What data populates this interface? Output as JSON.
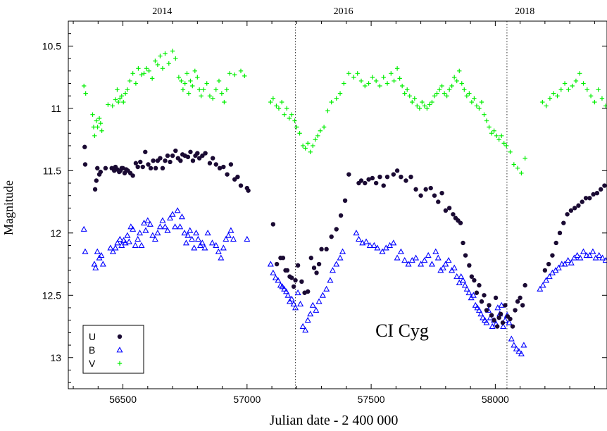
{
  "chart_data": {
    "type": "scatter",
    "title": "CI Cyg",
    "xlabel": "Julian date - 2 400 000",
    "ylabel": "Magnitude",
    "xlim": [
      56280,
      58450
    ],
    "ylim": [
      13.25,
      10.3
    ],
    "y_inverted": true,
    "x_ticks": [
      56500,
      57000,
      57500,
      58000
    ],
    "y_ticks": [
      10.5,
      11,
      11.5,
      12,
      12.5,
      13
    ],
    "top_axis": {
      "labels": [
        "2014",
        "2016",
        "2018"
      ],
      "positions": [
        56658,
        57388,
        58119
      ]
    },
    "vertical_lines": [
      57195,
      58047
    ],
    "legend_placement": "bottom-left",
    "grid": false,
    "colors": {
      "U": "#1a0a33",
      "B": "#0000ff",
      "V": "#00ee00"
    },
    "series": [
      {
        "name": "U",
        "marker": "circle",
        "x": [
          56346,
          56348,
          56388,
          56393,
          56397,
          56405,
          56410,
          56430,
          56455,
          56465,
          56470,
          56477,
          56485,
          56490,
          56495,
          56500,
          56507,
          56513,
          56520,
          56530,
          56540,
          56552,
          56560,
          56570,
          56580,
          56590,
          56602,
          56612,
          56622,
          56632,
          56640,
          56650,
          56660,
          56670,
          56680,
          56690,
          56700,
          56712,
          56722,
          56732,
          56740,
          56750,
          56762,
          56772,
          56782,
          56792,
          56800,
          56808,
          56820,
          56832,
          56850,
          56862,
          56875,
          56890,
          56905,
          56920,
          56935,
          56950,
          56962,
          56975,
          57000,
          57005,
          57105,
          57120,
          57135,
          57145,
          57155,
          57162,
          57172,
          57180,
          57188,
          57195,
          57205,
          57220,
          57232,
          57245,
          57258,
          57270,
          57280,
          57290,
          57300,
          57320,
          57340,
          57360,
          57378,
          57395,
          57410,
          57450,
          57460,
          57475,
          57490,
          57505,
          57520,
          57535,
          57550,
          57565,
          57590,
          57605,
          57620,
          57640,
          57660,
          57680,
          57700,
          57720,
          57740,
          57755,
          57770,
          57785,
          57800,
          57815,
          57830,
          57840,
          57850,
          57860,
          57870,
          57880,
          57895,
          57905,
          57915,
          57925,
          57935,
          57945,
          57955,
          57965,
          57975,
          57985,
          57995,
          58002,
          58008,
          58015,
          58022,
          58030,
          58040,
          58050,
          58060,
          58070,
          58080,
          58090,
          58100,
          58110,
          58120,
          58200,
          58215,
          58230,
          58245,
          58260,
          58275,
          58290,
          58305,
          58320,
          58335,
          58350,
          58365,
          58380,
          58395,
          58410,
          58425,
          58440
        ],
        "y": [
          11.31,
          11.45,
          11.65,
          11.58,
          11.48,
          11.53,
          11.51,
          11.48,
          11.48,
          11.5,
          11.47,
          11.49,
          11.51,
          11.5,
          11.48,
          11.48,
          11.52,
          11.49,
          11.5,
          11.52,
          11.54,
          11.44,
          11.47,
          11.43,
          11.47,
          11.35,
          11.45,
          11.48,
          11.42,
          11.48,
          11.42,
          11.4,
          11.48,
          11.42,
          11.38,
          11.43,
          11.38,
          11.34,
          11.4,
          11.42,
          11.37,
          11.38,
          11.39,
          11.35,
          11.42,
          11.38,
          11.36,
          11.4,
          11.38,
          11.36,
          11.44,
          11.4,
          11.45,
          11.48,
          11.47,
          11.53,
          11.45,
          11.57,
          11.55,
          11.62,
          11.64,
          11.66,
          11.93,
          12.25,
          12.2,
          12.2,
          12.3,
          12.3,
          12.35,
          12.36,
          12.43,
          12.38,
          12.26,
          12.39,
          12.48,
          12.47,
          12.2,
          12.28,
          12.32,
          12.25,
          12.13,
          12.13,
          12.03,
          11.97,
          11.86,
          11.74,
          11.53,
          11.6,
          11.58,
          11.6,
          11.57,
          11.56,
          11.6,
          11.55,
          11.62,
          11.55,
          11.53,
          11.5,
          11.55,
          11.58,
          11.55,
          11.65,
          11.7,
          11.65,
          11.64,
          11.7,
          11.75,
          11.68,
          11.82,
          11.8,
          11.85,
          11.88,
          11.9,
          11.92,
          12.08,
          12.18,
          12.26,
          12.35,
          12.38,
          12.48,
          12.42,
          12.55,
          12.5,
          12.62,
          12.58,
          12.66,
          12.7,
          12.52,
          12.75,
          12.68,
          12.65,
          12.72,
          12.58,
          12.67,
          12.69,
          12.75,
          12.62,
          12.55,
          12.52,
          12.58,
          12.42,
          12.3,
          12.25,
          12.18,
          12.08,
          12.0,
          11.92,
          11.85,
          11.82,
          11.8,
          11.78,
          11.75,
          11.72,
          11.72,
          11.69,
          11.68,
          11.65,
          11.62
        ]
      },
      {
        "name": "B",
        "marker": "triangle",
        "x": [
          56343,
          56348,
          56385,
          56390,
          56397,
          56405,
          56413,
          56420,
          56450,
          56460,
          56470,
          56478,
          56488,
          56495,
          56503,
          56510,
          56518,
          56525,
          56532,
          56540,
          56550,
          56560,
          56568,
          56575,
          56585,
          56592,
          56600,
          56610,
          56620,
          56630,
          56640,
          56650,
          56660,
          56670,
          56680,
          56690,
          56700,
          56710,
          56720,
          56730,
          56738,
          56748,
          56755,
          56762,
          56770,
          56778,
          56787,
          56795,
          56803,
          56812,
          56820,
          56830,
          56842,
          56860,
          56875,
          56885,
          56895,
          56905,
          56915,
          56925,
          56935,
          56945,
          57000,
          57095,
          57105,
          57115,
          57125,
          57135,
          57142,
          57150,
          57158,
          57165,
          57172,
          57180,
          57188,
          57195,
          57205,
          57215,
          57225,
          57235,
          57245,
          57255,
          57265,
          57278,
          57290,
          57305,
          57320,
          57335,
          57345,
          57360,
          57375,
          57385,
          57440,
          57450,
          57465,
          57480,
          57495,
          57512,
          57525,
          57545,
          57560,
          57575,
          57590,
          57605,
          57620,
          57635,
          57650,
          57665,
          57680,
          57700,
          57715,
          57730,
          57745,
          57760,
          57770,
          57780,
          57790,
          57800,
          57812,
          57825,
          57835,
          57845,
          57855,
          57862,
          57870,
          57878,
          57886,
          57894,
          57903,
          57912,
          57920,
          57928,
          57935,
          57942,
          57950,
          57958,
          57965,
          57972,
          57980,
          57988,
          57995,
          58003,
          58010,
          58018,
          58025,
          58032,
          58040,
          58048,
          58056,
          58065,
          58075,
          58085,
          58095,
          58105,
          58115,
          58180,
          58192,
          58205,
          58218,
          58230,
          58243,
          58255,
          58268,
          58280,
          58293,
          58306,
          58318,
          58330,
          58342,
          58355,
          58368,
          58380,
          58393,
          58405,
          58418,
          58432,
          58445
        ],
        "y": [
          11.97,
          12.15,
          12.25,
          12.28,
          12.15,
          12.2,
          12.18,
          12.25,
          12.12,
          12.15,
          12.12,
          12.08,
          12.05,
          12.1,
          12.06,
          12.08,
          12.02,
          12.07,
          11.95,
          11.97,
          12.1,
          12.05,
          12.0,
          12.1,
          11.92,
          11.98,
          11.9,
          11.93,
          12.02,
          12.05,
          12.0,
          11.95,
          11.9,
          11.95,
          11.98,
          11.88,
          11.85,
          11.95,
          11.82,
          11.95,
          11.87,
          12.0,
          12.08,
          12.02,
          11.98,
          12.05,
          12.12,
          12.0,
          12.05,
          12.1,
          12.08,
          12.12,
          12.0,
          12.08,
          12.1,
          12.15,
          12.2,
          12.12,
          12.05,
          12.02,
          11.98,
          12.05,
          12.05,
          12.25,
          12.32,
          12.36,
          12.38,
          12.42,
          12.43,
          12.45,
          12.47,
          12.5,
          12.55,
          12.53,
          12.57,
          12.6,
          12.48,
          12.57,
          12.75,
          12.78,
          12.7,
          12.65,
          12.58,
          12.62,
          12.55,
          12.5,
          12.45,
          12.38,
          12.3,
          12.25,
          12.2,
          12.15,
          12.0,
          12.05,
          12.08,
          12.07,
          12.1,
          12.1,
          12.12,
          12.15,
          12.12,
          12.1,
          12.08,
          12.2,
          12.15,
          12.22,
          12.25,
          12.22,
          12.2,
          12.25,
          12.22,
          12.18,
          12.25,
          12.15,
          12.2,
          12.3,
          12.28,
          12.25,
          12.22,
          12.3,
          12.28,
          12.35,
          12.4,
          12.35,
          12.38,
          12.42,
          12.45,
          12.48,
          12.52,
          12.5,
          12.58,
          12.6,
          12.62,
          12.65,
          12.68,
          12.7,
          12.72,
          12.62,
          12.68,
          12.75,
          12.7,
          12.73,
          12.6,
          12.65,
          12.58,
          12.75,
          12.7,
          12.66,
          12.72,
          12.85,
          12.9,
          12.93,
          12.95,
          12.97,
          12.9,
          12.45,
          12.42,
          12.38,
          12.35,
          12.32,
          12.3,
          12.28,
          12.25,
          12.25,
          12.22,
          12.24,
          12.2,
          12.18,
          12.2,
          12.15,
          12.18,
          12.18,
          12.15,
          12.2,
          12.18,
          12.2,
          12.22
        ]
      },
      {
        "name": "V",
        "marker": "plus",
        "x": [
          56343,
          56350,
          56378,
          56382,
          56386,
          56393,
          56398,
          56405,
          56410,
          56415,
          56440,
          56458,
          56470,
          56477,
          56482,
          56488,
          56495,
          56502,
          56510,
          56518,
          56528,
          56540,
          56552,
          56562,
          56575,
          56585,
          56595,
          56605,
          56618,
          56630,
          56640,
          56650,
          56660,
          56670,
          56685,
          56700,
          56712,
          56725,
          56735,
          56742,
          56750,
          56758,
          56765,
          56772,
          56780,
          56790,
          56800,
          56808,
          56815,
          56825,
          56838,
          56850,
          56862,
          56875,
          56887,
          56898,
          56908,
          56918,
          56930,
          56950,
          56975,
          56990,
          57095,
          57105,
          57118,
          57128,
          57140,
          57150,
          57160,
          57170,
          57180,
          57192,
          57200,
          57212,
          57225,
          57235,
          57245,
          57255,
          57265,
          57275,
          57285,
          57295,
          57310,
          57325,
          57340,
          57360,
          57375,
          57390,
          57410,
          57430,
          57445,
          57460,
          57475,
          57490,
          57505,
          57520,
          57535,
          57550,
          57565,
          57580,
          57592,
          57605,
          57615,
          57625,
          57635,
          57645,
          57655,
          57665,
          57675,
          57685,
          57695,
          57705,
          57715,
          57725,
          57735,
          57745,
          57755,
          57765,
          57775,
          57785,
          57795,
          57805,
          57815,
          57825,
          57835,
          57845,
          57855,
          57865,
          57875,
          57885,
          57895,
          57905,
          57915,
          57925,
          57935,
          57945,
          57955,
          57965,
          57975,
          57985,
          57995,
          58005,
          58015,
          58025,
          58035,
          58045,
          58060,
          58075,
          58090,
          58105,
          58120,
          58190,
          58205,
          58220,
          58235,
          58250,
          58265,
          58280,
          58295,
          58310,
          58325,
          58340,
          58355,
          58370,
          58385,
          58400,
          58415,
          58430,
          58445
        ],
        "y": [
          10.82,
          10.88,
          11.05,
          11.15,
          11.22,
          11.1,
          11.15,
          11.08,
          11.12,
          11.18,
          10.97,
          10.98,
          10.93,
          10.85,
          10.95,
          10.92,
          10.9,
          10.95,
          10.88,
          10.85,
          10.78,
          10.72,
          10.8,
          10.68,
          10.73,
          10.72,
          10.68,
          10.7,
          10.76,
          10.62,
          10.65,
          10.58,
          10.68,
          10.56,
          10.64,
          10.54,
          10.6,
          10.75,
          10.78,
          10.85,
          10.8,
          10.72,
          10.88,
          10.78,
          10.82,
          10.7,
          10.75,
          10.85,
          10.9,
          10.85,
          10.8,
          10.9,
          10.92,
          10.85,
          10.78,
          10.88,
          10.95,
          10.85,
          10.72,
          10.73,
          10.7,
          10.74,
          10.95,
          10.92,
          10.98,
          11.0,
          10.95,
          11.05,
          11.0,
          11.08,
          11.05,
          11.1,
          11.15,
          11.2,
          11.3,
          11.32,
          11.28,
          11.35,
          11.3,
          11.25,
          11.22,
          11.18,
          11.15,
          11.02,
          10.95,
          10.92,
          10.88,
          10.8,
          10.72,
          10.75,
          10.72,
          10.78,
          10.82,
          10.8,
          10.75,
          10.78,
          10.82,
          10.75,
          10.8,
          10.72,
          10.78,
          10.68,
          10.76,
          10.82,
          10.88,
          10.85,
          10.9,
          10.95,
          10.92,
          10.98,
          11.0,
          10.95,
          10.98,
          11.0,
          10.97,
          10.95,
          10.9,
          10.88,
          10.85,
          10.82,
          10.88,
          10.9,
          10.85,
          10.82,
          10.75,
          10.78,
          10.7,
          10.8,
          10.85,
          10.9,
          10.88,
          10.95,
          10.92,
          10.98,
          11.0,
          10.95,
          11.05,
          11.1,
          11.15,
          11.2,
          11.18,
          11.22,
          11.25,
          11.22,
          11.28,
          11.3,
          11.35,
          11.45,
          11.48,
          11.52,
          11.4,
          10.95,
          10.98,
          10.92,
          10.88,
          10.9,
          10.85,
          10.8,
          10.85,
          10.82,
          10.78,
          10.72,
          10.8,
          10.85,
          10.9,
          10.95,
          10.85,
          10.92,
          10.98
        ]
      }
    ]
  }
}
